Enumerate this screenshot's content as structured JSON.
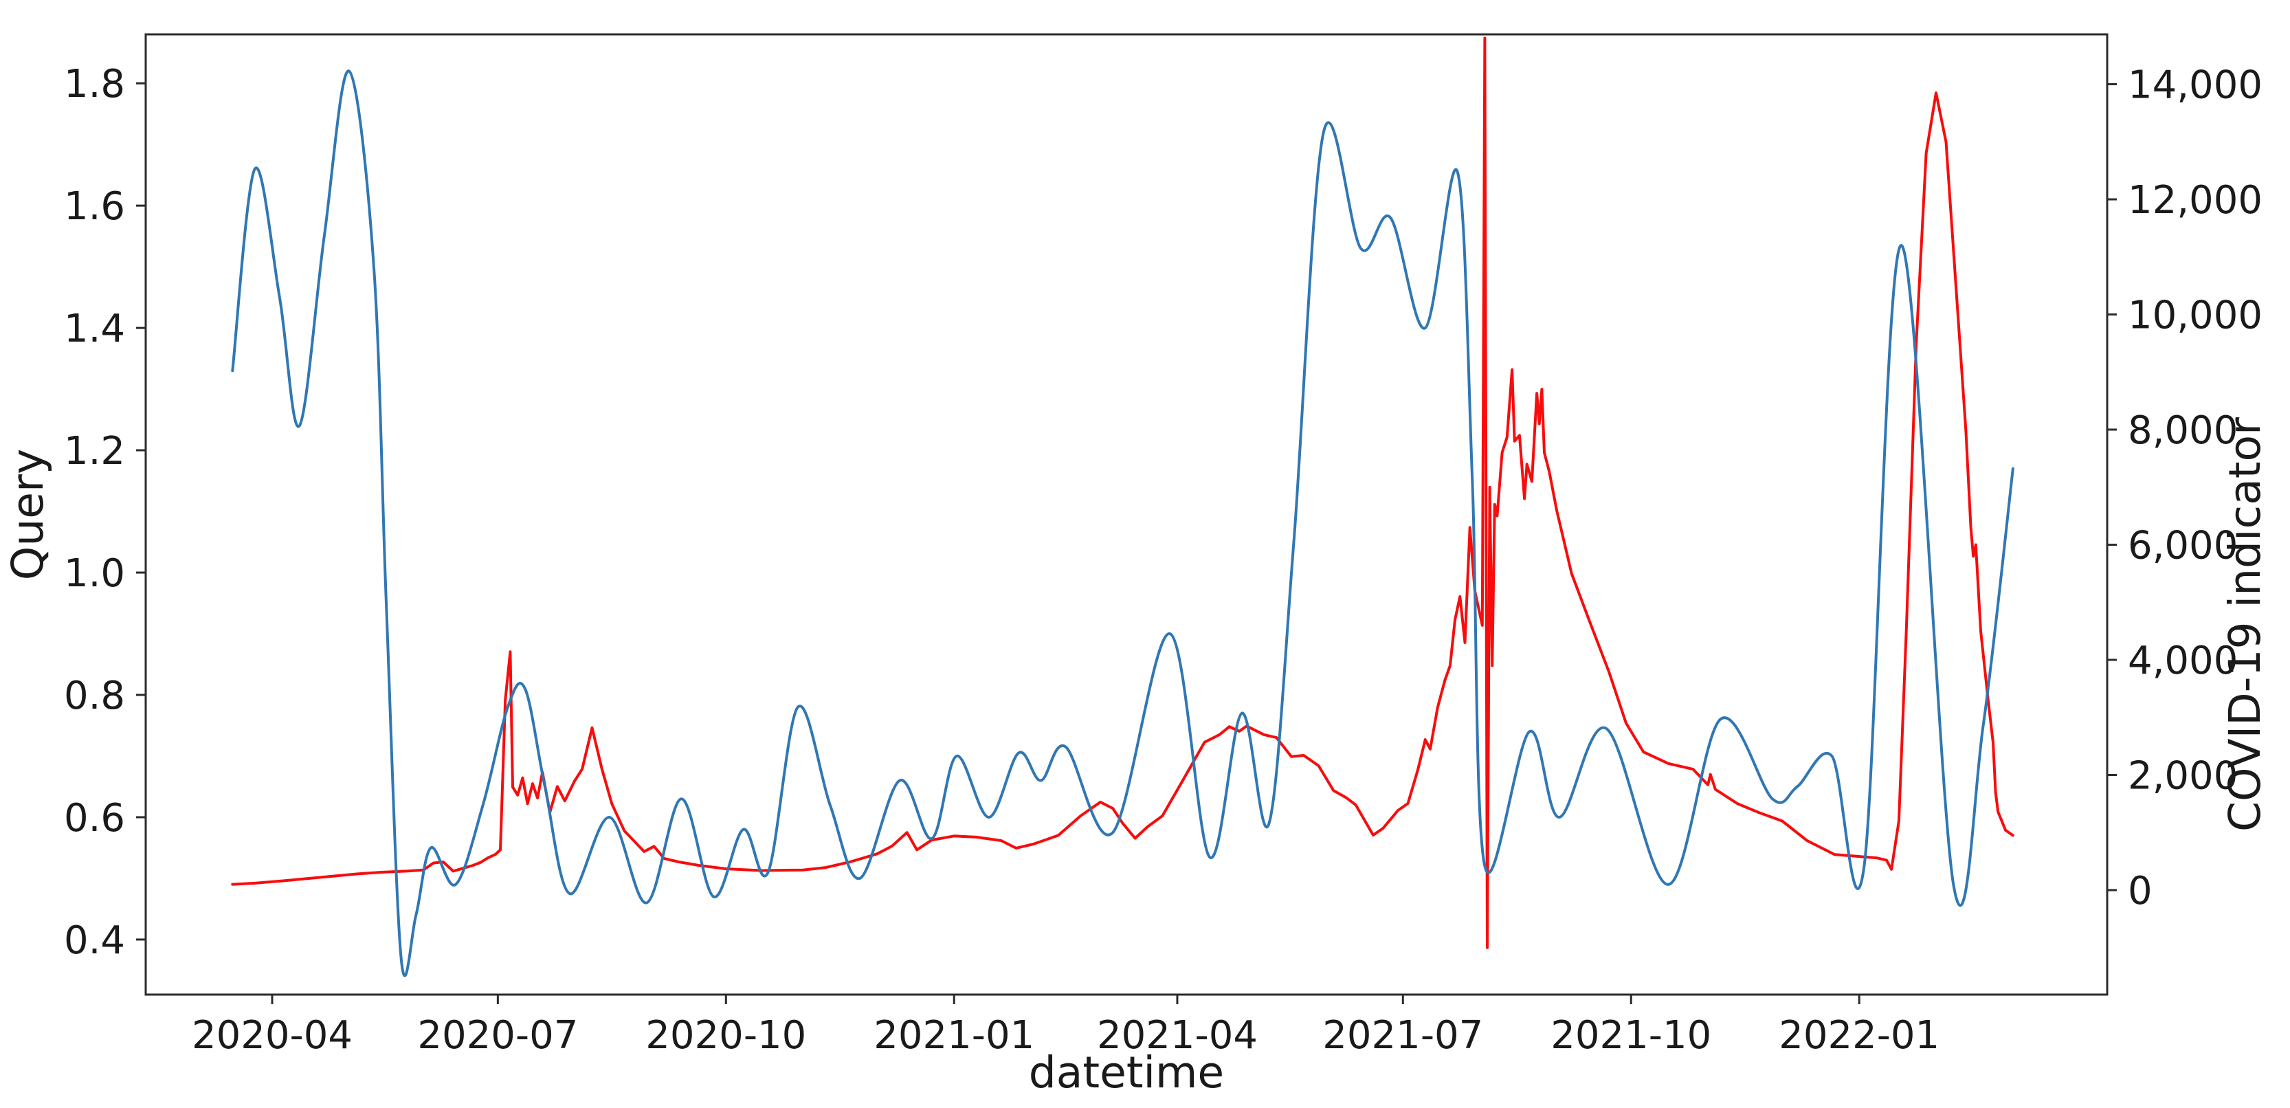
{
  "chart_data": {
    "type": "line",
    "title": "",
    "xlabel": "datetime",
    "ylabel_left": "Query",
    "ylabel_right": "COVID-19 indicator",
    "grid": false,
    "legend": "none",
    "background_color": "#ffffff",
    "spine_color": "#2b2b2b",
    "xlim": [
      "2020-02-10",
      "2022-04-11"
    ],
    "ylim_left": [
      0.31,
      1.88
    ],
    "ylim_right": [
      -1815,
      14866
    ],
    "x_ticks": [
      {
        "date": "2020-04-01",
        "label": "2020-04"
      },
      {
        "date": "2020-07-01",
        "label": "2020-07"
      },
      {
        "date": "2020-10-01",
        "label": "2020-10"
      },
      {
        "date": "2021-01-01",
        "label": "2021-01"
      },
      {
        "date": "2021-04-01",
        "label": "2021-04"
      },
      {
        "date": "2021-07-01",
        "label": "2021-07"
      },
      {
        "date": "2021-10-01",
        "label": "2021-10"
      },
      {
        "date": "2022-01-01",
        "label": "2022-01"
      }
    ],
    "y_left_ticks": [
      {
        "v": 0.4,
        "label": "0.4"
      },
      {
        "v": 0.6,
        "label": "0.6"
      },
      {
        "v": 0.8,
        "label": "0.8"
      },
      {
        "v": 1.0,
        "label": "1.0"
      },
      {
        "v": 1.2,
        "label": "1.2"
      },
      {
        "v": 1.4,
        "label": "1.4"
      },
      {
        "v": 1.6,
        "label": "1.6"
      },
      {
        "v": 1.8,
        "label": "1.8"
      }
    ],
    "y_right_ticks": [
      {
        "v": 0,
        "label": "0"
      },
      {
        "v": 2000,
        "label": "2,000"
      },
      {
        "v": 4000,
        "label": "4,000"
      },
      {
        "v": 6000,
        "label": "6,000"
      },
      {
        "v": 8000,
        "label": "8,000"
      },
      {
        "v": 10000,
        "label": "10,000"
      },
      {
        "v": 12000,
        "label": "12,000"
      },
      {
        "v": 14000,
        "label": "14,000"
      }
    ],
    "series": [
      {
        "name": "Query",
        "axis": "left",
        "color": "#3077b4",
        "width": 4,
        "smooth": true,
        "points": [
          [
            "2020-03-16",
            1.33
          ],
          [
            "2020-03-25",
            1.66
          ],
          [
            "2020-04-04",
            1.45
          ],
          [
            "2020-04-12",
            1.24
          ],
          [
            "2020-04-22",
            1.55
          ],
          [
            "2020-05-02",
            1.82
          ],
          [
            "2020-05-12",
            1.5
          ],
          [
            "2020-05-17",
            0.95
          ],
          [
            "2020-05-23",
            0.37
          ],
          [
            "2020-05-29",
            0.44
          ],
          [
            "2020-06-04",
            0.55
          ],
          [
            "2020-06-14",
            0.49
          ],
          [
            "2020-06-25",
            0.62
          ],
          [
            "2020-07-05",
            0.78
          ],
          [
            "2020-07-12",
            0.81
          ],
          [
            "2020-07-20",
            0.65
          ],
          [
            "2020-07-30",
            0.475
          ],
          [
            "2020-08-15",
            0.6
          ],
          [
            "2020-08-30",
            0.46
          ],
          [
            "2020-09-13",
            0.63
          ],
          [
            "2020-09-26",
            0.47
          ],
          [
            "2020-10-08",
            0.58
          ],
          [
            "2020-10-18",
            0.51
          ],
          [
            "2020-10-30",
            0.78
          ],
          [
            "2020-11-12",
            0.62
          ],
          [
            "2020-11-24",
            0.5
          ],
          [
            "2020-12-10",
            0.66
          ],
          [
            "2020-12-23",
            0.565
          ],
          [
            "2021-01-02",
            0.7
          ],
          [
            "2021-01-15",
            0.6
          ],
          [
            "2021-01-27",
            0.705
          ],
          [
            "2021-02-05",
            0.66
          ],
          [
            "2021-02-15",
            0.715
          ],
          [
            "2021-03-06",
            0.575
          ],
          [
            "2021-03-29",
            0.9
          ],
          [
            "2021-04-14",
            0.535
          ],
          [
            "2021-04-27",
            0.77
          ],
          [
            "2021-05-08",
            0.59
          ],
          [
            "2021-05-18",
            1.05
          ],
          [
            "2021-05-30",
            1.72
          ],
          [
            "2021-06-14",
            1.53
          ],
          [
            "2021-06-26",
            1.58
          ],
          [
            "2021-07-10",
            1.4
          ],
          [
            "2021-07-23",
            1.655
          ],
          [
            "2021-07-29",
            1.15
          ],
          [
            "2021-08-03",
            0.52
          ],
          [
            "2021-08-21",
            0.74
          ],
          [
            "2021-09-02",
            0.6
          ],
          [
            "2021-09-21",
            0.745
          ],
          [
            "2021-10-16",
            0.49
          ],
          [
            "2021-11-06",
            0.76
          ],
          [
            "2021-11-27",
            0.63
          ],
          [
            "2021-12-07",
            0.65
          ],
          [
            "2021-12-21",
            0.7
          ],
          [
            "2022-01-03",
            0.52
          ],
          [
            "2022-01-18",
            1.535
          ],
          [
            "2022-02-08",
            0.49
          ],
          [
            "2022-02-20",
            0.75
          ],
          [
            "2022-03-04",
            1.17
          ]
        ]
      },
      {
        "name": "COVID-19 indicator",
        "axis": "right",
        "color": "#f80c0c",
        "width": 4,
        "smooth": false,
        "points": [
          [
            "2020-03-16",
            100
          ],
          [
            "2020-03-25",
            120
          ],
          [
            "2020-04-05",
            160
          ],
          [
            "2020-04-15",
            200
          ],
          [
            "2020-04-25",
            240
          ],
          [
            "2020-05-05",
            280
          ],
          [
            "2020-05-15",
            310
          ],
          [
            "2020-05-25",
            330
          ],
          [
            "2020-06-01",
            350
          ],
          [
            "2020-06-05",
            470
          ],
          [
            "2020-06-09",
            490
          ],
          [
            "2020-06-13",
            330
          ],
          [
            "2020-06-17",
            380
          ],
          [
            "2020-06-21",
            430
          ],
          [
            "2020-06-24",
            480
          ],
          [
            "2020-06-27",
            560
          ],
          [
            "2020-06-30",
            620
          ],
          [
            "2020-07-02",
            700
          ],
          [
            "2020-07-04",
            3300
          ],
          [
            "2020-07-06",
            4140
          ],
          [
            "2020-07-07",
            1790
          ],
          [
            "2020-07-09",
            1650
          ],
          [
            "2020-07-11",
            1950
          ],
          [
            "2020-07-13",
            1500
          ],
          [
            "2020-07-15",
            1850
          ],
          [
            "2020-07-17",
            1600
          ],
          [
            "2020-07-19",
            2050
          ],
          [
            "2020-07-22",
            1350
          ],
          [
            "2020-07-25",
            1800
          ],
          [
            "2020-07-28",
            1550
          ],
          [
            "2020-08-01",
            1900
          ],
          [
            "2020-08-04",
            2100
          ],
          [
            "2020-08-08",
            2820
          ],
          [
            "2020-08-12",
            2100
          ],
          [
            "2020-08-16",
            1500
          ],
          [
            "2020-08-21",
            1030
          ],
          [
            "2020-08-25",
            850
          ],
          [
            "2020-08-29",
            670
          ],
          [
            "2020-09-02",
            760
          ],
          [
            "2020-09-06",
            550
          ],
          [
            "2020-09-12",
            490
          ],
          [
            "2020-09-20",
            430
          ],
          [
            "2020-10-01",
            370
          ],
          [
            "2020-10-15",
            340
          ],
          [
            "2020-11-01",
            350
          ],
          [
            "2020-11-10",
            390
          ],
          [
            "2020-11-20",
            490
          ],
          [
            "2020-12-01",
            630
          ],
          [
            "2020-12-07",
            765
          ],
          [
            "2020-12-13",
            1000
          ],
          [
            "2020-12-17",
            700
          ],
          [
            "2020-12-23",
            870
          ],
          [
            "2021-01-01",
            940
          ],
          [
            "2021-01-10",
            920
          ],
          [
            "2021-01-20",
            860
          ],
          [
            "2021-01-26",
            730
          ],
          [
            "2021-02-02",
            800
          ],
          [
            "2021-02-12",
            950
          ],
          [
            "2021-02-21",
            1290
          ],
          [
            "2021-03-01",
            1530
          ],
          [
            "2021-03-06",
            1420
          ],
          [
            "2021-03-10",
            1160
          ],
          [
            "2021-03-15",
            900
          ],
          [
            "2021-03-20",
            1100
          ],
          [
            "2021-03-26",
            1290
          ],
          [
            "2021-04-03",
            1890
          ],
          [
            "2021-04-12",
            2570
          ],
          [
            "2021-04-18",
            2700
          ],
          [
            "2021-04-22",
            2840
          ],
          [
            "2021-04-26",
            2760
          ],
          [
            "2021-04-29",
            2850
          ],
          [
            "2021-05-06",
            2700
          ],
          [
            "2021-05-11",
            2650
          ],
          [
            "2021-05-17",
            2320
          ],
          [
            "2021-05-22",
            2340
          ],
          [
            "2021-05-28",
            2160
          ],
          [
            "2021-06-03",
            1730
          ],
          [
            "2021-06-08",
            1610
          ],
          [
            "2021-06-12",
            1480
          ],
          [
            "2021-06-16",
            1180
          ],
          [
            "2021-06-19",
            955
          ],
          [
            "2021-06-23",
            1075
          ],
          [
            "2021-06-29",
            1385
          ],
          [
            "2021-07-03",
            1505
          ],
          [
            "2021-07-07",
            2090
          ],
          [
            "2021-07-10",
            2615
          ],
          [
            "2021-07-12",
            2450
          ],
          [
            "2021-07-15",
            3175
          ],
          [
            "2021-07-18",
            3655
          ],
          [
            "2021-07-20",
            3900
          ],
          [
            "2021-07-22",
            4700
          ],
          [
            "2021-07-24",
            5100
          ],
          [
            "2021-07-26",
            4300
          ],
          [
            "2021-07-28",
            6300
          ],
          [
            "2021-07-30",
            5200
          ],
          [
            "2021-08-02",
            4600
          ],
          [
            "2021-08-03",
            14800
          ],
          [
            "2021-08-04",
            -1000
          ],
          [
            "2021-08-05",
            7000
          ],
          [
            "2021-08-06",
            3900
          ],
          [
            "2021-08-07",
            6700
          ],
          [
            "2021-08-08",
            6500
          ],
          [
            "2021-08-10",
            7600
          ],
          [
            "2021-08-12",
            7870
          ],
          [
            "2021-08-14",
            9040
          ],
          [
            "2021-08-15",
            7800
          ],
          [
            "2021-08-17",
            7900
          ],
          [
            "2021-08-19",
            6800
          ],
          [
            "2021-08-20",
            7400
          ],
          [
            "2021-08-22",
            7100
          ],
          [
            "2021-08-24",
            8630
          ],
          [
            "2021-08-25",
            8100
          ],
          [
            "2021-08-26",
            8700
          ],
          [
            "2021-08-27",
            7600
          ],
          [
            "2021-08-29",
            7270
          ],
          [
            "2021-09-01",
            6600
          ],
          [
            "2021-09-07",
            5500
          ],
          [
            "2021-09-14",
            4700
          ],
          [
            "2021-09-22",
            3800
          ],
          [
            "2021-09-29",
            2900
          ],
          [
            "2021-10-06",
            2400
          ],
          [
            "2021-10-16",
            2200
          ],
          [
            "2021-10-26",
            2100
          ],
          [
            "2021-11-01",
            1830
          ],
          [
            "2021-11-02",
            2010
          ],
          [
            "2021-11-04",
            1750
          ],
          [
            "2021-11-13",
            1500
          ],
          [
            "2021-11-22",
            1340
          ],
          [
            "2021-12-01",
            1200
          ],
          [
            "2021-12-11",
            860
          ],
          [
            "2021-12-22",
            620
          ],
          [
            "2022-01-02",
            580
          ],
          [
            "2022-01-08",
            560
          ],
          [
            "2022-01-12",
            520
          ],
          [
            "2022-01-14",
            360
          ],
          [
            "2022-01-17",
            1200
          ],
          [
            "2022-01-20",
            4500
          ],
          [
            "2022-01-24",
            9500
          ],
          [
            "2022-01-28",
            12800
          ],
          [
            "2022-02-01",
            13850
          ],
          [
            "2022-02-05",
            13000
          ],
          [
            "2022-02-09",
            10500
          ],
          [
            "2022-02-13",
            8000
          ],
          [
            "2022-02-15",
            6300
          ],
          [
            "2022-02-16",
            5800
          ],
          [
            "2022-02-17",
            6000
          ],
          [
            "2022-02-19",
            4500
          ],
          [
            "2022-02-22",
            3300
          ],
          [
            "2022-02-24",
            2560
          ],
          [
            "2022-02-25",
            1700
          ],
          [
            "2022-02-26",
            1360
          ],
          [
            "2022-03-01",
            1040
          ],
          [
            "2022-03-04",
            950
          ]
        ]
      }
    ]
  }
}
